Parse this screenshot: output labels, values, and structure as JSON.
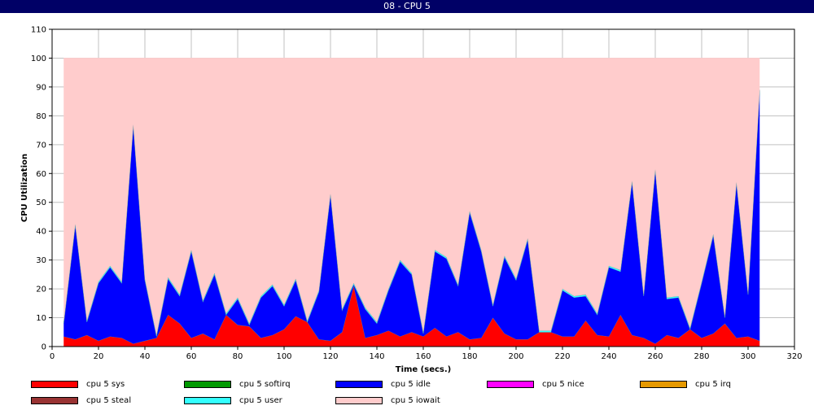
{
  "window": {
    "title": "08 - CPU 5"
  },
  "chart_data": {
    "type": "area",
    "stacked": true,
    "xlabel": "Time (secs.)",
    "ylabel": "CPU Utilization",
    "xlim": [
      0,
      320
    ],
    "ylim": [
      0,
      110
    ],
    "xticks": [
      0,
      20,
      40,
      60,
      80,
      100,
      120,
      140,
      160,
      180,
      200,
      220,
      240,
      260,
      280,
      300,
      320
    ],
    "yticks": [
      0,
      10,
      20,
      30,
      40,
      50,
      60,
      70,
      80,
      90,
      100,
      110
    ],
    "grid": true,
    "legend_position": "bottom",
    "x": [
      5,
      10,
      15,
      20,
      25,
      30,
      35,
      40,
      45,
      50,
      55,
      60,
      65,
      70,
      75,
      80,
      85,
      90,
      95,
      100,
      105,
      110,
      115,
      120,
      125,
      130,
      135,
      140,
      145,
      150,
      155,
      160,
      165,
      170,
      175,
      180,
      185,
      190,
      195,
      200,
      205,
      210,
      215,
      220,
      225,
      230,
      235,
      240,
      245,
      250,
      255,
      260,
      265,
      270,
      275,
      280,
      285,
      290,
      295,
      300,
      305
    ],
    "series": [
      {
        "name": "cpu 5 sys",
        "color": "#ff0000",
        "values": [
          3.5,
          2.5,
          4,
          2,
          3.5,
          3,
          1,
          2,
          3,
          11,
          8,
          3,
          4.5,
          2.5,
          11,
          7.5,
          7,
          3,
          4,
          6,
          10.5,
          8.5,
          2.5,
          2,
          5,
          21,
          3,
          4,
          5.5,
          3.5,
          5,
          3.5,
          6.5,
          3.5,
          5,
          2.5,
          3,
          10,
          4.5,
          2.5,
          2.5,
          5,
          5,
          3.5,
          3.5,
          9,
          4,
          3.5,
          11,
          4,
          3,
          1,
          4,
          3,
          6,
          3,
          4.5,
          8,
          3,
          3.5,
          2
        ]
      },
      {
        "name": "cpu 5 softirq",
        "color": "#009900",
        "values": [
          0,
          0,
          0,
          0,
          0,
          0,
          0,
          0,
          0,
          0,
          0,
          0,
          0,
          0,
          0,
          0,
          0,
          0,
          0,
          0,
          0,
          0,
          0,
          0,
          0,
          0,
          0,
          0,
          0,
          0,
          0,
          0,
          0,
          0,
          0,
          0,
          0,
          0,
          0,
          0,
          0,
          0,
          0,
          0,
          0,
          0,
          0,
          0,
          0,
          0,
          0,
          0,
          0,
          0,
          0,
          0,
          0,
          0,
          0,
          0,
          0
        ]
      },
      {
        "name": "cpu 5 idle",
        "color": "#0000ff",
        "values": [
          4.5,
          39.5,
          4.5,
          20,
          24,
          19,
          75.5,
          21,
          0.5,
          12.5,
          9.5,
          30,
          11,
          22.5,
          0,
          9,
          0.5,
          14,
          17,
          8,
          12.5,
          0,
          16.5,
          50.5,
          7.5,
          0.5,
          10,
          4,
          14,
          26,
          20,
          1,
          26.5,
          27,
          16,
          44,
          30,
          4,
          26.5,
          20.5,
          34.5,
          0,
          0,
          16,
          13.5,
          8.5,
          7,
          24,
          15,
          53,
          14.5,
          60,
          12.5,
          14,
          0,
          19,
          34,
          2,
          53.5,
          14.5,
          86.5
        ]
      },
      {
        "name": "cpu 5 nice",
        "color": "#ff00ff",
        "values": [
          0,
          0,
          0,
          0,
          0,
          0,
          0,
          0,
          0,
          0,
          0,
          0,
          0,
          0,
          0,
          0,
          0,
          0,
          0,
          0,
          0,
          0,
          0,
          0,
          0,
          0,
          0,
          0,
          0,
          0,
          0,
          0,
          0,
          0,
          0,
          0,
          0,
          0,
          0,
          0,
          0,
          0,
          0,
          0,
          0,
          0,
          0,
          0,
          0,
          0,
          0,
          0,
          0,
          0,
          0,
          0,
          0,
          0,
          0,
          0,
          0
        ]
      },
      {
        "name": "cpu 5 irq",
        "color": "#e69900",
        "values": [
          0,
          0,
          0,
          0,
          0,
          0,
          0,
          0,
          0,
          0,
          0,
          0,
          0,
          0,
          0,
          0,
          0,
          0,
          0,
          0,
          0,
          0,
          0,
          0,
          0,
          0,
          0,
          0,
          0,
          0,
          0,
          0,
          0,
          0,
          0,
          0,
          0,
          0,
          0,
          0,
          0,
          0,
          0,
          0,
          0,
          0,
          0,
          0,
          0,
          0,
          0,
          0,
          0,
          0,
          0,
          0,
          0,
          0,
          0,
          0,
          0
        ]
      },
      {
        "name": "cpu 5 steal",
        "color": "#993333",
        "values": [
          0,
          0,
          0,
          0,
          0,
          0,
          0,
          0,
          0,
          0,
          0,
          0,
          0,
          0,
          0,
          0,
          0,
          0,
          0,
          0,
          0,
          0,
          0,
          0,
          0,
          0,
          0,
          0,
          0,
          0,
          0,
          0,
          0,
          0,
          0,
          0,
          0,
          0,
          0,
          0,
          0,
          0,
          0,
          0,
          0,
          0,
          0,
          0,
          0,
          0,
          0,
          0,
          0,
          0,
          0,
          0,
          0,
          0,
          0,
          0,
          0
        ]
      },
      {
        "name": "cpu 5 user",
        "color": "#33ffff",
        "values": [
          0.5,
          0.5,
          0.5,
          0.5,
          0.5,
          0.5,
          0.5,
          0.5,
          0.5,
          0.5,
          0.5,
          0.5,
          0.5,
          0.5,
          0.5,
          0.5,
          0.5,
          0.5,
          0.5,
          0.5,
          0.5,
          0.5,
          0.5,
          0.5,
          0.5,
          0.5,
          0.5,
          0.5,
          0.5,
          0.5,
          0.5,
          0.5,
          0.5,
          0.5,
          0.5,
          0.5,
          0.5,
          0.5,
          0.5,
          0.5,
          0.5,
          0.5,
          0.5,
          0.5,
          0.5,
          0.5,
          0.5,
          0.5,
          0.5,
          0.5,
          0.5,
          0.5,
          0.5,
          0.5,
          0.5,
          0.5,
          0.5,
          0.5,
          0.5,
          0.5,
          0.5
        ]
      },
      {
        "name": "cpu 5 iowait",
        "color": "#ffcccc",
        "values": [
          91.5,
          57.5,
          91,
          77.5,
          72,
          77.5,
          23,
          76.5,
          96,
          76,
          82,
          66.5,
          84,
          74.5,
          88.5,
          83,
          92,
          82.5,
          78.5,
          85.5,
          76.5,
          91,
          80.5,
          47,
          87,
          78,
          86.5,
          91.5,
          80,
          70,
          74.5,
          95,
          66.5,
          69,
          78.5,
          53,
          66.5,
          85.5,
          68.5,
          76.5,
          62.5,
          94.5,
          94.5,
          80,
          82.5,
          82,
          88.5,
          72,
          73.5,
          42.5,
          82,
          38.5,
          83,
          82.5,
          93.5,
          77.5,
          61,
          89.5,
          43,
          81.5,
          11
        ]
      }
    ]
  }
}
